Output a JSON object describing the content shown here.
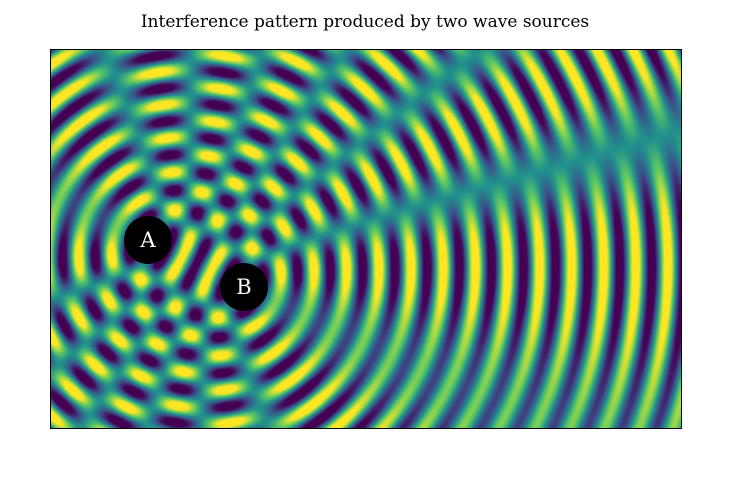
{
  "title": "Interference pattern produced by two wave sources",
  "sources": [
    {
      "label": "A"
    },
    {
      "label": "B"
    }
  ],
  "colormap": "viridis",
  "colors": {
    "dark": "#440154",
    "mid": "#21918c",
    "light": "#fde725",
    "source_fill": "#000000",
    "source_text": "#ffffff"
  }
}
